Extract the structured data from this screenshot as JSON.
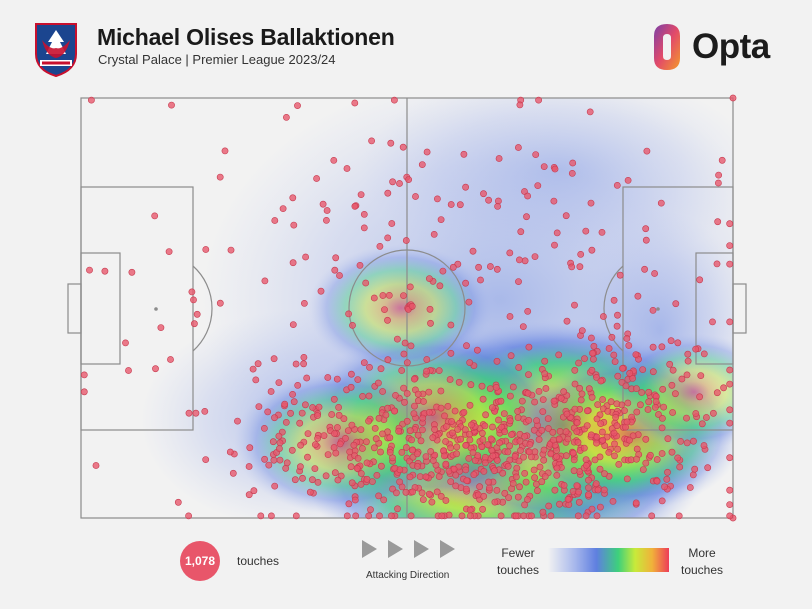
{
  "header": {
    "title": "Michael Olises Ballaktionen",
    "subtitle": "Crystal Palace | Premier League 2023/24",
    "brand": "Opta",
    "club_crest_icon": "crystal-palace-crest-icon",
    "brand_logo_icon": "opta-logo-icon"
  },
  "colors": {
    "touch_dot": "#e8566a",
    "pitch_line": "#8c8c8c",
    "background": "#f2f2f2"
  },
  "footer": {
    "touch_count": "1,078",
    "touch_label": "touches",
    "attacking_direction_label": "Attacking Direction",
    "legend_fewer_line1": "Fewer",
    "legend_fewer_line2": "touches",
    "legend_more_line1": "More",
    "legend_more_line2": "touches"
  },
  "chart_data": {
    "type": "scatter",
    "title": "Michael Olises Ballaktionen",
    "subtitle": "Crystal Palace | Premier League 2023/24",
    "x_range": [
      0,
      100
    ],
    "y_range": [
      0,
      100
    ],
    "attacking_direction": "left-to-right",
    "total_points": 1078,
    "heatmap_hotspots": [
      {
        "x": 68,
        "y": 17,
        "intensity": 1.0
      },
      {
        "x": 60,
        "y": 12,
        "intensity": 0.85
      },
      {
        "x": 74,
        "y": 22,
        "intensity": 0.8
      },
      {
        "x": 54,
        "y": 24,
        "intensity": 0.6
      },
      {
        "x": 84,
        "y": 20,
        "intensity": 0.5
      },
      {
        "x": 40,
        "y": 18,
        "intensity": 0.45
      },
      {
        "x": 49,
        "y": 50,
        "intensity": 0.35
      },
      {
        "x": 94,
        "y": 30,
        "intensity": 0.3
      }
    ],
    "clusters": [
      {
        "x": 66,
        "y": 14,
        "sx": 11,
        "sy": 8,
        "n": 330
      },
      {
        "x": 76,
        "y": 24,
        "sx": 8,
        "sy": 9,
        "n": 150
      },
      {
        "x": 50,
        "y": 17,
        "sx": 10,
        "sy": 9,
        "n": 170
      },
      {
        "x": 36,
        "y": 20,
        "sx": 9,
        "sy": 11,
        "n": 110
      },
      {
        "x": 88,
        "y": 22,
        "sx": 6,
        "sy": 10,
        "n": 90
      },
      {
        "x": 62,
        "y": 60,
        "sx": 18,
        "sy": 22,
        "n": 170
      },
      {
        "x": 30,
        "y": 55,
        "sx": 16,
        "sy": 22,
        "n": 50
      }
    ],
    "fixed_points": [
      {
        "x": 50.3,
        "y": 50.5
      },
      {
        "x": 50.5,
        "y": 50.2
      },
      {
        "x": 50.1,
        "y": 50.0
      },
      {
        "x": 50.6,
        "y": 50.8
      },
      {
        "x": 50.2,
        "y": 49.7
      },
      {
        "x": 50.8,
        "y": 50.4
      },
      {
        "x": 100,
        "y": 100
      },
      {
        "x": 100,
        "y": 0
      },
      {
        "x": 2.3,
        "y": 12.5
      },
      {
        "x": 7.8,
        "y": 58.5
      },
      {
        "x": 33.2,
        "y": 98.2
      },
      {
        "x": 42.0,
        "y": 98.8
      }
    ]
  }
}
